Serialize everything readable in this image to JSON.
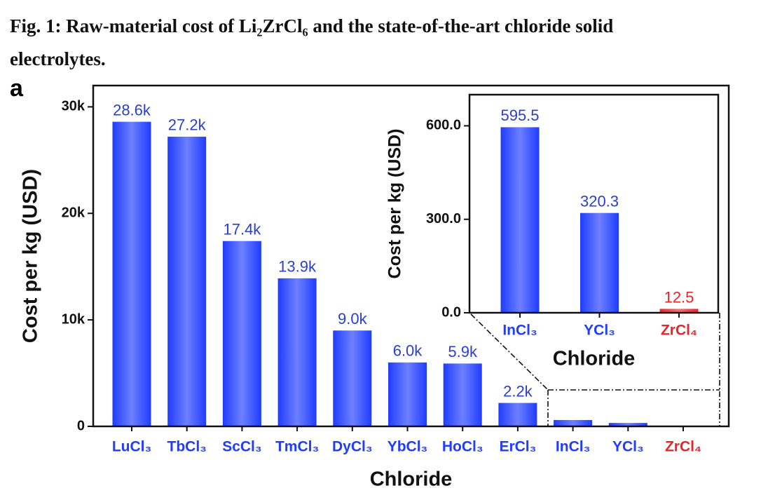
{
  "title": "Fig. 1: Raw-material cost of Li₂ZrCl₆ and the state-of-the-art chloride solid electrolytes.",
  "panel_label": "a",
  "chart_data": [
    {
      "type": "bar",
      "xlabel": "Chloride",
      "ylabel": "Cost per kg (USD)",
      "categories": [
        "LuCl₃",
        "TbCl₃",
        "ScCl₃",
        "TmCl₃",
        "DyCl₃",
        "YbCl₃",
        "HoCl₃",
        "ErCl₃",
        "InCl₃",
        "YCl₃",
        "ZrCl₄"
      ],
      "values": [
        28600,
        27200,
        17400,
        13900,
        9000,
        6000,
        5900,
        2200,
        595.5,
        320.3,
        12.5
      ],
      "value_labels": [
        "28.6k",
        "27.2k",
        "17.4k",
        "13.9k",
        "9.0k",
        "6.0k",
        "5.9k",
        "2.2k",
        null,
        null,
        null
      ],
      "colors": [
        "#1f3cff",
        "#1f3cff",
        "#1f3cff",
        "#1f3cff",
        "#1f3cff",
        "#1f3cff",
        "#1f3cff",
        "#1f3cff",
        "#1f3cff",
        "#1f3cff",
        "#e8262a"
      ],
      "ylim": [
        0,
        32000
      ],
      "yticks": [
        0,
        {
          "value": 10000,
          "label": "10k"
        },
        {
          "value": 20000,
          "label": "20k"
        },
        {
          "value": 30000,
          "label": "30k"
        }
      ]
    },
    {
      "type": "bar",
      "xlabel": "Chloride",
      "ylabel": "Cost per kg (USD)",
      "categories": [
        "InCl₃",
        "YCl₃",
        "ZrCl₄"
      ],
      "values": [
        595.5,
        320.3,
        12.5
      ],
      "colors": [
        "#1f3cff",
        "#1f3cff",
        "#e8262a"
      ],
      "ylim": [
        0,
        700
      ],
      "yticks": [
        {
          "value": 0,
          "label": "0.0"
        },
        {
          "value": 300,
          "label": "300.0"
        },
        {
          "value": 600,
          "label": "600.0"
        }
      ]
    }
  ]
}
